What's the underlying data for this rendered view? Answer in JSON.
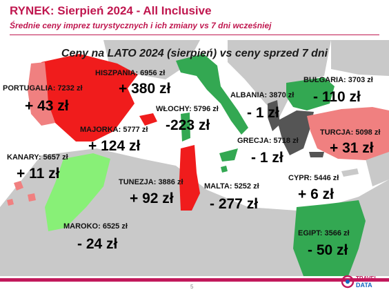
{
  "header": {
    "title": "RYNEK: Sierpień 2024 - All Inclusive",
    "subtitle": "Średnie ceny imprez turystycznych i ich zmiany vs 7 dni wcześniej"
  },
  "map_title": "Ceny na LATO 2024 (sierpień) vs ceny sprzed 7 dni",
  "colors": {
    "increase": "#f01c1c",
    "decrease": "#33a852",
    "small_increase": "#f08080",
    "small_decrease": "#88f077",
    "neutral": "#555555",
    "sea": "#ffffff",
    "land": "#c9c9c9"
  },
  "destinations": [
    {
      "id": "portugalia",
      "label": "PORTUGALIA: 7232 zł",
      "change": "+ 43 zł"
    },
    {
      "id": "hiszpania",
      "label": "HISZPANIA: 6956 zł",
      "change": "+ 380 zł"
    },
    {
      "id": "majorka",
      "label": "MAJORKA: 5777 zł",
      "change": "+ 124 zł"
    },
    {
      "id": "wlochy",
      "label": "WŁOCHY: 5796 zł",
      "change": "-223 zł"
    },
    {
      "id": "albania",
      "label": "ALBANIA: 3870 zł",
      "change": "- 1 zł"
    },
    {
      "id": "bulgaria",
      "label": "BUŁGARIA: 3703 zł",
      "change": "- 110 zł"
    },
    {
      "id": "turcja",
      "label": "TURCJA: 5098 zł",
      "change": "+ 31 zł"
    },
    {
      "id": "grecja",
      "label": "GRECJA: 5718 zł",
      "change": "- 1 zł"
    },
    {
      "id": "kanary",
      "label": "KANARY: 5657 zł",
      "change": "+ 11 zł"
    },
    {
      "id": "tunezja",
      "label": "TUNEZJA: 3886 zł",
      "change": "+ 92 zł"
    },
    {
      "id": "malta",
      "label": "MALTA: 5252 zł",
      "change": "- 277 zł"
    },
    {
      "id": "cypr",
      "label": "CYPR: 5446 zł",
      "change": "+ 6 zł"
    },
    {
      "id": "maroko",
      "label": "MAROKO: 6525 zł",
      "change": "- 24 zł"
    },
    {
      "id": "egipt",
      "label": "EGIPT: 3566 zł",
      "change": "- 50 zł"
    }
  ],
  "footer": {
    "page_number": "5",
    "logo_text_top": "TRAVEL",
    "logo_text_bottom": "DATA"
  }
}
